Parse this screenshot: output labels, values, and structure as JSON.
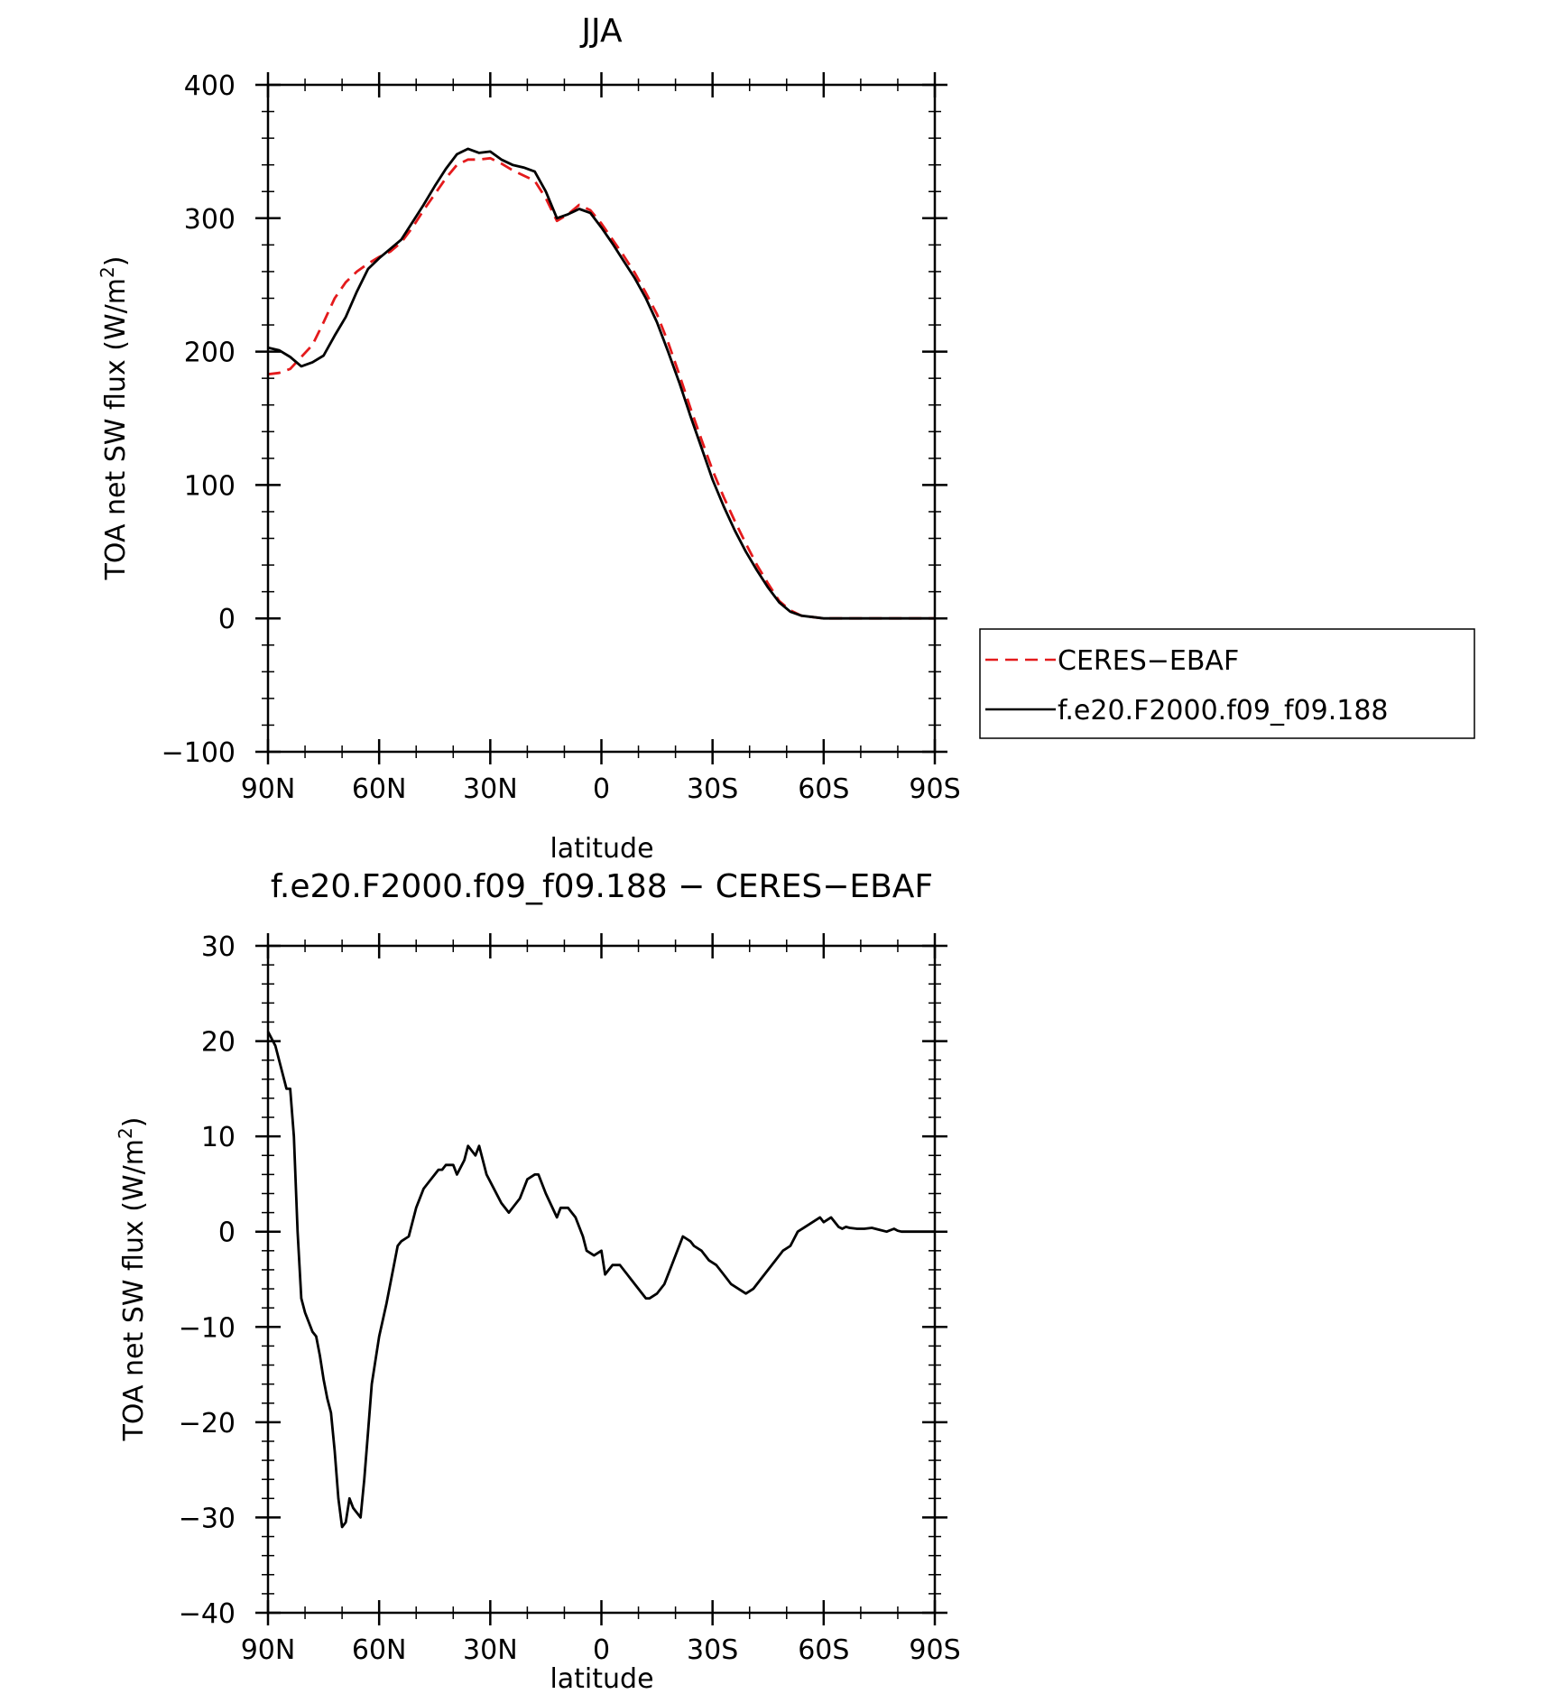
{
  "chart_data": [
    {
      "type": "line",
      "title": "JJA",
      "xlabel": "latitude",
      "ylabel": "TOA net SW flux (W/m",
      "ylabel_sup": "2",
      "ylabel_close": ")",
      "xlim": [
        90,
        -90
      ],
      "ylim": [
        -100,
        400
      ],
      "x_ticks": [
        90,
        60,
        30,
        0,
        -30,
        -60,
        -90
      ],
      "x_tick_labels": [
        "90N",
        "60N",
        "30N",
        "0",
        "30S",
        "60S",
        "90S"
      ],
      "y_ticks": [
        -100,
        0,
        100,
        200,
        300,
        400
      ],
      "y_tick_labels": [
        "−100",
        "0",
        "100",
        "200",
        "300",
        "400"
      ],
      "legend": {
        "placement": "right",
        "entries": [
          "CERES−EBAF",
          "f.e20.F2000.f09_f09.188"
        ]
      },
      "series": [
        {
          "name": "CERES−EBAF",
          "color": "#e41a1c",
          "dash": "dashed",
          "x": [
            90,
            87,
            84,
            81,
            78,
            75,
            72,
            69,
            66,
            63,
            60,
            57,
            54,
            51,
            48,
            45,
            42,
            39,
            36,
            33,
            30,
            27,
            24,
            21,
            18,
            15,
            12,
            9,
            6,
            3,
            0,
            -3,
            -6,
            -9,
            -12,
            -15,
            -18,
            -21,
            -24,
            -27,
            -30,
            -33,
            -36,
            -39,
            -42,
            -45,
            -48,
            -51,
            -54,
            -57,
            -60,
            -63,
            -66,
            -69,
            -72,
            -75,
            -78,
            -81,
            -84,
            -87,
            -90
          ],
          "y": [
            183,
            184,
            187,
            196,
            205,
            222,
            240,
            252,
            260,
            266,
            271,
            275,
            282,
            293,
            306,
            318,
            330,
            340,
            344,
            344,
            345,
            341,
            336,
            332,
            328,
            315,
            298,
            303,
            310,
            306,
            296,
            284,
            272,
            259,
            244,
            228,
            207,
            183,
            158,
            134,
            111,
            91,
            73,
            56,
            40,
            26,
            13,
            6,
            2,
            1,
            0,
            0,
            0,
            0,
            0,
            0,
            0,
            0,
            0,
            0,
            0
          ]
        },
        {
          "name": "f.e20.F2000.f09_f09.188",
          "color": "#000000",
          "dash": "solid",
          "x": [
            90,
            87,
            84,
            81,
            78,
            75,
            72,
            69,
            66,
            63,
            60,
            57,
            54,
            51,
            48,
            45,
            42,
            39,
            36,
            33,
            30,
            27,
            24,
            21,
            18,
            15,
            12,
            9,
            6,
            3,
            0,
            -3,
            -6,
            -9,
            -12,
            -15,
            -18,
            -21,
            -24,
            -27,
            -30,
            -33,
            -36,
            -39,
            -42,
            -45,
            -48,
            -51,
            -54,
            -57,
            -60,
            -63,
            -66,
            -69,
            -72,
            -75,
            -78,
            -81,
            -84,
            -87,
            -90
          ],
          "y": [
            203,
            201,
            196,
            189,
            192,
            197,
            212,
            226,
            245,
            262,
            270,
            277,
            284,
            297,
            310,
            324,
            337,
            348,
            352,
            349,
            350,
            344,
            340,
            338,
            335,
            320,
            300,
            303,
            307,
            304,
            293,
            281,
            268,
            255,
            240,
            222,
            200,
            177,
            152,
            128,
            104,
            84,
            66,
            50,
            36,
            23,
            12,
            5,
            2,
            1,
            0,
            0,
            0,
            0,
            0,
            0,
            0,
            0,
            0,
            0,
            0
          ]
        }
      ]
    },
    {
      "type": "line",
      "title": "f.e20.F2000.f09_f09.188 − CERES−EBAF",
      "xlabel": "latitude",
      "ylabel": "TOA net SW flux (W/m",
      "ylabel_sup": "2",
      "ylabel_close": ")",
      "xlim": [
        90,
        -90
      ],
      "ylim": [
        -40,
        30
      ],
      "x_ticks": [
        90,
        60,
        30,
        0,
        -30,
        -60,
        -90
      ],
      "x_tick_labels": [
        "90N",
        "60N",
        "30N",
        "0",
        "30S",
        "60S",
        "90S"
      ],
      "y_ticks": [
        -40,
        -30,
        -20,
        -10,
        0,
        10,
        20,
        30
      ],
      "y_tick_labels": [
        "−40",
        "−30",
        "−20",
        "−10",
        "0",
        "10",
        "20",
        "30"
      ],
      "series": [
        {
          "color": "#000000",
          "dash": "solid",
          "x": [
            90,
            88,
            86,
            85,
            84,
            83,
            82,
            81,
            80,
            78,
            77,
            76,
            75,
            74,
            73,
            72,
            71,
            70,
            69,
            68,
            67,
            66,
            65,
            64,
            63,
            62,
            60,
            58,
            56,
            55,
            54,
            52,
            50,
            48,
            46,
            45,
            44,
            43,
            42,
            40,
            39,
            37,
            36,
            34,
            33,
            31,
            29,
            27,
            25,
            24,
            22,
            20,
            18,
            17,
            15,
            12,
            11,
            9,
            7,
            5,
            4,
            2,
            0,
            -1,
            -2,
            -3,
            -5,
            -7,
            -8,
            -10,
            -12,
            -13,
            -15,
            -17,
            -19,
            -21,
            -22,
            -24,
            -25,
            -27,
            -29,
            -31,
            -33,
            -35,
            -37,
            -39,
            -41,
            -43,
            -45,
            -47,
            -49,
            -51,
            -53,
            -55,
            -57,
            -59,
            -60,
            -62,
            -64,
            -65,
            -66,
            -67,
            -69,
            -71,
            -73,
            -75,
            -77,
            -79,
            -80,
            -81,
            -83,
            -85,
            -87,
            -89,
            -90
          ],
          "y": [
            21,
            19.5,
            16.5,
            15,
            15,
            10,
            0,
            -7,
            -8.5,
            -10.5,
            -11,
            -13,
            -15.5,
            -17.5,
            -19,
            -23,
            -28,
            -31,
            -30.5,
            -28,
            -29,
            -29.5,
            -30,
            -26,
            -21,
            -16,
            -11,
            -7.5,
            -3.5,
            -1.5,
            -1,
            -0.5,
            2.5,
            4.5,
            5.5,
            6,
            6.5,
            6.5,
            7,
            7,
            6,
            7.5,
            9,
            8,
            9,
            6,
            4.5,
            3,
            2,
            2.5,
            3.5,
            5.5,
            6,
            6,
            4,
            1.5,
            2.5,
            2.5,
            1.5,
            -0.5,
            -2,
            -2.5,
            -2,
            -4.5,
            -4,
            -3.5,
            -3.5,
            -4.5,
            -5,
            -6,
            -7,
            -7,
            -6.5,
            -5.5,
            -3.5,
            -1.5,
            -0.5,
            -1,
            -1.5,
            -2,
            -3,
            -3.5,
            -4.5,
            -5.5,
            -6,
            -6.5,
            -6,
            -5,
            -4,
            -3,
            -2,
            -1.5,
            0,
            0.5,
            1,
            1.5,
            1,
            1.5,
            0.5,
            0.3,
            0.5,
            0.4,
            0.3,
            0.3,
            0.4,
            0.2,
            0,
            0.3,
            0.1,
            0,
            0,
            0,
            0,
            0,
            0
          ]
        }
      ]
    }
  ]
}
